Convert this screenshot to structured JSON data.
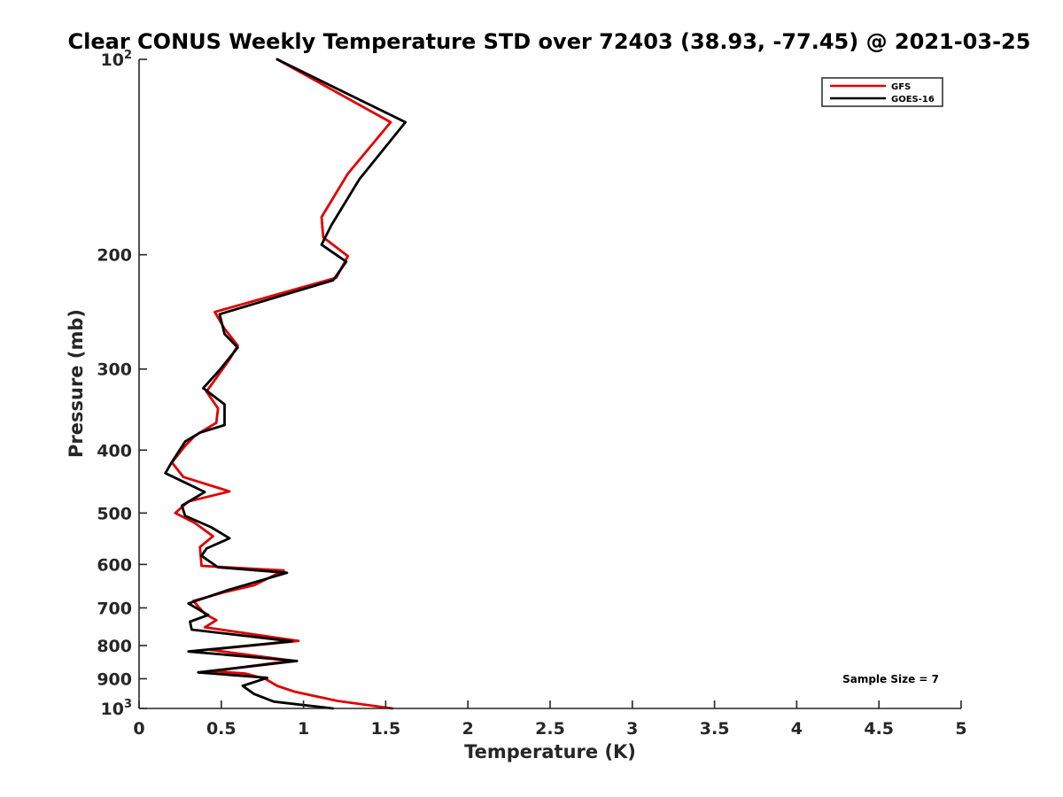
{
  "chart_data": {
    "type": "line",
    "title": "Clear CONUS Weekly Temperature STD over 72403 (38.93, -77.45) @ 2021-03-25",
    "xlabel": "Temperature (K)",
    "ylabel": "Pressure (mb)",
    "xlim": [
      0,
      5
    ],
    "ylim": [
      100,
      1000
    ],
    "y_scale": "log",
    "y_reversed": true,
    "grid": false,
    "legend_position": "top-right",
    "x_ticks": [
      {
        "value": 0,
        "label": "0"
      },
      {
        "value": 0.5,
        "label": "0.5"
      },
      {
        "value": 1,
        "label": "1"
      },
      {
        "value": 1.5,
        "label": "1.5"
      },
      {
        "value": 2,
        "label": "2"
      },
      {
        "value": 2.5,
        "label": "2.5"
      },
      {
        "value": 3,
        "label": "3"
      },
      {
        "value": 3.5,
        "label": "3.5"
      },
      {
        "value": 4,
        "label": "4"
      },
      {
        "value": 4.5,
        "label": "4.5"
      },
      {
        "value": 5,
        "label": "5"
      }
    ],
    "y_ticks": [
      {
        "value": 100,
        "base": "10",
        "exp": "2"
      },
      {
        "value": 200,
        "label": "200"
      },
      {
        "value": 300,
        "label": "300"
      },
      {
        "value": 400,
        "label": "400"
      },
      {
        "value": 500,
        "label": "500"
      },
      {
        "value": 600,
        "label": "600"
      },
      {
        "value": 700,
        "label": "700"
      },
      {
        "value": 800,
        "label": "800"
      },
      {
        "value": 900,
        "label": "900"
      },
      {
        "value": 1000,
        "base": "10",
        "exp": "3"
      }
    ],
    "series": [
      {
        "name": "GFS",
        "color": "#e00000",
        "points": [
          [
            0.84,
            100
          ],
          [
            1.53,
            125
          ],
          [
            1.27,
            150
          ],
          [
            1.11,
            175
          ],
          [
            1.12,
            188
          ],
          [
            1.27,
            201
          ],
          [
            1.2,
            217
          ],
          [
            0.46,
            245
          ],
          [
            0.52,
            260
          ],
          [
            0.6,
            276
          ],
          [
            0.55,
            290
          ],
          [
            0.41,
            325
          ],
          [
            0.48,
            345
          ],
          [
            0.47,
            363
          ],
          [
            0.34,
            380
          ],
          [
            0.28,
            394
          ],
          [
            0.2,
            418
          ],
          [
            0.27,
            440
          ],
          [
            0.55,
            463
          ],
          [
            0.3,
            480
          ],
          [
            0.22,
            500
          ],
          [
            0.34,
            518
          ],
          [
            0.45,
            543
          ],
          [
            0.37,
            564
          ],
          [
            0.38,
            603
          ],
          [
            0.88,
            613
          ],
          [
            0.7,
            646
          ],
          [
            0.52,
            662
          ],
          [
            0.33,
            683
          ],
          [
            0.4,
            715
          ],
          [
            0.47,
            731
          ],
          [
            0.4,
            750
          ],
          [
            0.97,
            787
          ],
          [
            0.43,
            812
          ],
          [
            0.93,
            844
          ],
          [
            0.45,
            876
          ],
          [
            0.65,
            884
          ],
          [
            0.77,
            901
          ],
          [
            0.84,
            923
          ],
          [
            0.95,
            943
          ],
          [
            1.2,
            973
          ],
          [
            1.54,
            1000
          ]
        ]
      },
      {
        "name": "GOES-16",
        "color": "#000000",
        "points": [
          [
            0.84,
            100
          ],
          [
            1.62,
            125
          ],
          [
            1.34,
            153
          ],
          [
            1.17,
            180
          ],
          [
            1.11,
            193
          ],
          [
            1.26,
            205
          ],
          [
            1.18,
            219
          ],
          [
            0.49,
            247
          ],
          [
            0.52,
            265
          ],
          [
            0.6,
            278
          ],
          [
            0.49,
            301
          ],
          [
            0.39,
            321
          ],
          [
            0.52,
            340
          ],
          [
            0.52,
            366
          ],
          [
            0.37,
            376
          ],
          [
            0.28,
            388
          ],
          [
            0.2,
            417
          ],
          [
            0.16,
            434
          ],
          [
            0.4,
            464
          ],
          [
            0.26,
            487
          ],
          [
            0.28,
            505
          ],
          [
            0.44,
            526
          ],
          [
            0.55,
            547
          ],
          [
            0.41,
            567
          ],
          [
            0.38,
            582
          ],
          [
            0.48,
            606
          ],
          [
            0.9,
            618
          ],
          [
            0.54,
            657
          ],
          [
            0.3,
            689
          ],
          [
            0.42,
            718
          ],
          [
            0.31,
            735
          ],
          [
            0.32,
            756
          ],
          [
            0.93,
            788
          ],
          [
            0.3,
            817
          ],
          [
            0.96,
            845
          ],
          [
            0.36,
            880
          ],
          [
            0.78,
            897
          ],
          [
            0.63,
            923
          ],
          [
            0.7,
            950
          ],
          [
            0.82,
            976
          ],
          [
            1.18,
            1000
          ]
        ]
      }
    ],
    "annotations": [
      {
        "text": "Sample Size = 7"
      }
    ]
  }
}
